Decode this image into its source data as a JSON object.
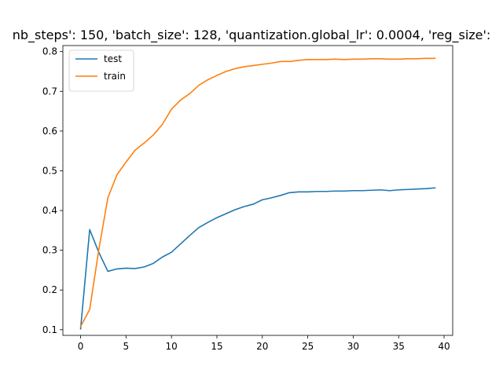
{
  "chart_data": {
    "type": "line",
    "title": "nb_steps': 150, 'batch_size': 128, 'quantization.global_lr': 0.0004, 'reg_size':",
    "xlabel": "",
    "ylabel": "",
    "xlim": [
      -1.95,
      40.95
    ],
    "ylim": [
      0.0858,
      0.8152
    ],
    "x_ticks": [
      0,
      5,
      10,
      15,
      20,
      25,
      30,
      35,
      40
    ],
    "y_ticks": [
      0.1,
      0.2,
      0.3,
      0.4,
      0.5,
      0.6,
      0.7,
      0.8
    ],
    "grid": false,
    "legend": "top-left",
    "x": [
      0,
      1,
      2,
      3,
      4,
      5,
      6,
      7,
      8,
      9,
      10,
      11,
      12,
      13,
      14,
      15,
      16,
      17,
      18,
      19,
      20,
      21,
      22,
      23,
      24,
      25,
      26,
      27,
      28,
      29,
      30,
      31,
      32,
      33,
      34,
      35,
      36,
      37,
      38,
      39
    ],
    "series": [
      {
        "name": "test",
        "color": "#1f77b4",
        "values": [
          0.102,
          0.352,
          0.295,
          0.247,
          0.253,
          0.255,
          0.254,
          0.258,
          0.267,
          0.283,
          0.295,
          0.316,
          0.337,
          0.357,
          0.37,
          0.382,
          0.392,
          0.402,
          0.41,
          0.416,
          0.427,
          0.432,
          0.438,
          0.445,
          0.447,
          0.447,
          0.448,
          0.448,
          0.449,
          0.449,
          0.45,
          0.45,
          0.451,
          0.452,
          0.45,
          0.452,
          0.453,
          0.454,
          0.455,
          0.457
        ]
      },
      {
        "name": "train",
        "color": "#ff7f0e",
        "values": [
          0.108,
          0.151,
          0.301,
          0.432,
          0.49,
          0.522,
          0.552,
          0.57,
          0.59,
          0.617,
          0.655,
          0.678,
          0.694,
          0.715,
          0.729,
          0.74,
          0.75,
          0.757,
          0.762,
          0.765,
          0.768,
          0.771,
          0.775,
          0.775,
          0.778,
          0.78,
          0.78,
          0.78,
          0.781,
          0.78,
          0.781,
          0.781,
          0.782,
          0.782,
          0.781,
          0.781,
          0.782,
          0.782,
          0.783,
          0.783
        ]
      }
    ]
  }
}
